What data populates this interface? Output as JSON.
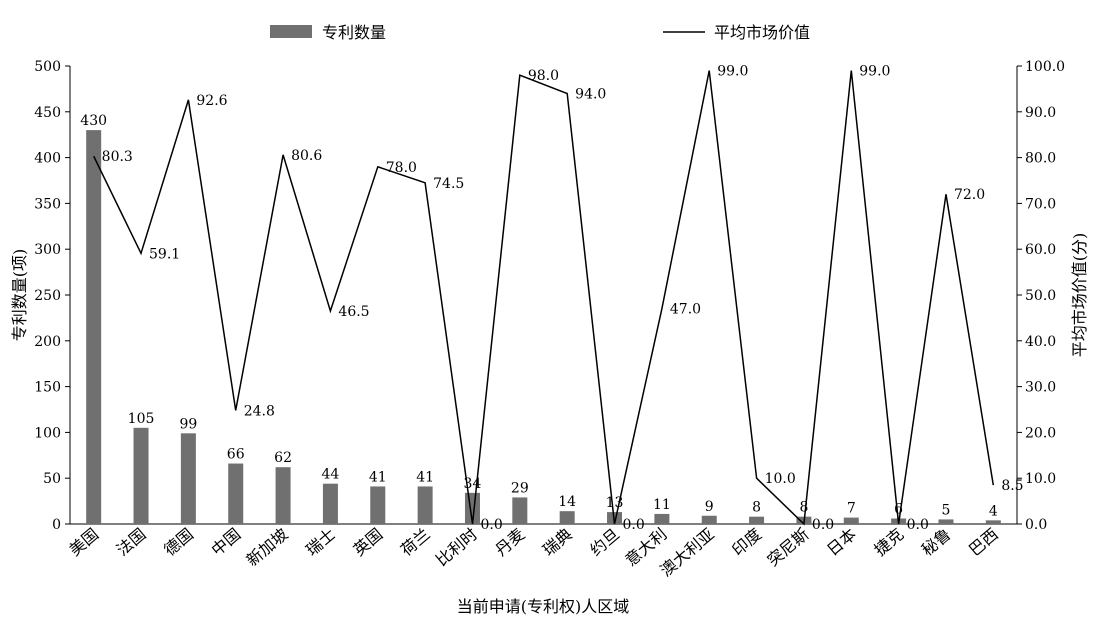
{
  "chart_data": {
    "type": "bar",
    "title": "",
    "categories": [
      "美国",
      "法国",
      "德国",
      "中国",
      "新加坡",
      "瑞士",
      "英国",
      "荷兰",
      "比利时",
      "丹麦",
      "瑞典",
      "约旦",
      "意大利",
      "澳大利亚",
      "印度",
      "突尼斯",
      "日本",
      "捷克",
      "秘鲁",
      "巴西"
    ],
    "series": [
      {
        "name": "专利数量",
        "type": "bar",
        "axis": "left",
        "color": "#707070",
        "values": [
          430,
          105,
          99,
          66,
          62,
          44,
          41,
          41,
          34,
          29,
          14,
          13,
          11,
          9,
          8,
          8,
          7,
          6,
          5,
          4
        ],
        "labels": [
          "430",
          "105",
          "99",
          "66",
          "62",
          "44",
          "41",
          "41",
          "34",
          "29",
          "14",
          "13",
          "11",
          "9",
          "8",
          "8",
          "7",
          "6",
          "5",
          "4"
        ]
      },
      {
        "name": "平均市场价值",
        "type": "line",
        "axis": "right",
        "color": "#000000",
        "values": [
          80.3,
          59.1,
          92.6,
          24.8,
          80.6,
          46.5,
          78.0,
          74.5,
          0.0,
          98.0,
          94.0,
          0.0,
          47.0,
          99.0,
          10.0,
          0.0,
          99.0,
          0.0,
          72.0,
          8.5
        ],
        "labels": [
          "80.3",
          "59.1",
          "92.6",
          "24.8",
          "80.6",
          "46.5",
          "78.0",
          "74.5",
          "0.0",
          "98.0",
          "94.0",
          "0.0",
          "47.0",
          "99.0",
          "10.0",
          "0.0",
          "99.0",
          "0.0",
          "72.0",
          "8.5"
        ]
      }
    ],
    "xlabel": "当前申请(专利权)人区域",
    "ylabel_left": "专利数量(项)",
    "ylabel_right": "平均市场价值(分)",
    "ylim_left": [
      0,
      500
    ],
    "ylim_right": [
      0,
      100
    ],
    "yticks_left": [
      "0",
      "50",
      "100",
      "150",
      "200",
      "250",
      "300",
      "350",
      "400",
      "450",
      "500"
    ],
    "yticks_right": [
      "0.0",
      "10.0",
      "20.0",
      "30.0",
      "40.0",
      "50.0",
      "60.0",
      "70.0",
      "80.0",
      "90.0",
      "100.0"
    ],
    "grid": false,
    "legend_position": "top"
  }
}
